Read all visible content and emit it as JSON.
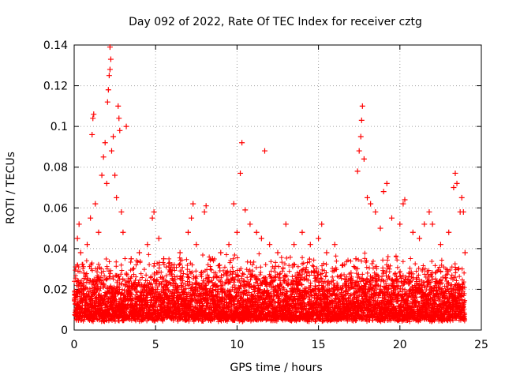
{
  "chart_data": {
    "type": "scatter",
    "title": "Day 092 of 2022, Rate Of TEC Index for receiver cztg",
    "xlabel": "GPS time / hours",
    "ylabel": "ROTI / TECUs",
    "xlim": [
      0,
      25
    ],
    "ylim": [
      0,
      0.14
    ],
    "xticks": [
      0,
      5,
      10,
      15,
      20,
      25
    ],
    "xtick_labels": [
      "0",
      "5",
      "10",
      "15",
      "20",
      "25"
    ],
    "yticks": [
      0,
      0.02,
      0.04,
      0.06,
      0.08,
      0.1,
      0.12,
      0.14
    ],
    "ytick_labels": [
      "0",
      "0.02",
      "0.04",
      "0.06",
      "0.08",
      "0.1",
      "0.12",
      "0.14"
    ],
    "grid": true,
    "legend": "none",
    "marker": "plus",
    "series": [
      {
        "color": "#ff0000",
        "points": [
          [
            0.1,
            0.031
          ],
          [
            0.2,
            0.045
          ],
          [
            0.3,
            0.052
          ],
          [
            0.4,
            0.038
          ],
          [
            0.6,
            0.028
          ],
          [
            0.8,
            0.042
          ],
          [
            1.0,
            0.055
          ],
          [
            1.1,
            0.096
          ],
          [
            1.15,
            0.104
          ],
          [
            1.2,
            0.106
          ],
          [
            1.3,
            0.062
          ],
          [
            1.5,
            0.048
          ],
          [
            1.7,
            0.076
          ],
          [
            1.8,
            0.085
          ],
          [
            1.9,
            0.092
          ],
          [
            2.0,
            0.072
          ],
          [
            2.05,
            0.112
          ],
          [
            2.1,
            0.118
          ],
          [
            2.15,
            0.125
          ],
          [
            2.2,
            0.128
          ],
          [
            2.25,
            0.133
          ],
          [
            2.2,
            0.139
          ],
          [
            2.3,
            0.088
          ],
          [
            2.4,
            0.095
          ],
          [
            2.5,
            0.076
          ],
          [
            2.6,
            0.065
          ],
          [
            2.7,
            0.11
          ],
          [
            2.75,
            0.104
          ],
          [
            2.8,
            0.098
          ],
          [
            2.9,
            0.058
          ],
          [
            3.0,
            0.048
          ],
          [
            3.2,
            0.1
          ],
          [
            3.5,
            0.035
          ],
          [
            4.0,
            0.038
          ],
          [
            4.5,
            0.042
          ],
          [
            4.8,
            0.055
          ],
          [
            4.9,
            0.058
          ],
          [
            5.2,
            0.045
          ],
          [
            5.5,
            0.035
          ],
          [
            6.0,
            0.032
          ],
          [
            6.5,
            0.038
          ],
          [
            7.0,
            0.048
          ],
          [
            7.2,
            0.055
          ],
          [
            7.3,
            0.062
          ],
          [
            7.5,
            0.042
          ],
          [
            8.0,
            0.058
          ],
          [
            8.1,
            0.061
          ],
          [
            8.5,
            0.035
          ],
          [
            9.0,
            0.038
          ],
          [
            9.5,
            0.042
          ],
          [
            9.8,
            0.062
          ],
          [
            10.0,
            0.048
          ],
          [
            10.2,
            0.077
          ],
          [
            10.3,
            0.092
          ],
          [
            10.5,
            0.059
          ],
          [
            10.8,
            0.052
          ],
          [
            11.2,
            0.048
          ],
          [
            11.5,
            0.045
          ],
          [
            11.7,
            0.088
          ],
          [
            12.0,
            0.042
          ],
          [
            12.5,
            0.038
          ],
          [
            13.0,
            0.052
          ],
          [
            13.5,
            0.042
          ],
          [
            14.0,
            0.048
          ],
          [
            14.5,
            0.042
          ],
          [
            15.0,
            0.045
          ],
          [
            15.2,
            0.052
          ],
          [
            15.5,
            0.038
          ],
          [
            16.0,
            0.042
          ],
          [
            16.5,
            0.032
          ],
          [
            17.0,
            0.028
          ],
          [
            17.3,
            0.035
          ],
          [
            17.4,
            0.078
          ],
          [
            17.5,
            0.088
          ],
          [
            17.6,
            0.095
          ],
          [
            17.65,
            0.103
          ],
          [
            17.7,
            0.11
          ],
          [
            17.8,
            0.084
          ],
          [
            18.0,
            0.065
          ],
          [
            18.2,
            0.062
          ],
          [
            18.5,
            0.058
          ],
          [
            18.8,
            0.05
          ],
          [
            19.0,
            0.068
          ],
          [
            19.2,
            0.072
          ],
          [
            19.5,
            0.055
          ],
          [
            20.0,
            0.052
          ],
          [
            20.2,
            0.062
          ],
          [
            20.3,
            0.064
          ],
          [
            20.8,
            0.048
          ],
          [
            21.2,
            0.045
          ],
          [
            21.5,
            0.052
          ],
          [
            21.8,
            0.058
          ],
          [
            22.0,
            0.052
          ],
          [
            22.5,
            0.042
          ],
          [
            23.0,
            0.048
          ],
          [
            23.3,
            0.07
          ],
          [
            23.4,
            0.077
          ],
          [
            23.5,
            0.072
          ],
          [
            23.7,
            0.058
          ],
          [
            23.8,
            0.065
          ],
          [
            23.9,
            0.058
          ],
          [
            24.0,
            0.038
          ]
        ]
      }
    ]
  }
}
